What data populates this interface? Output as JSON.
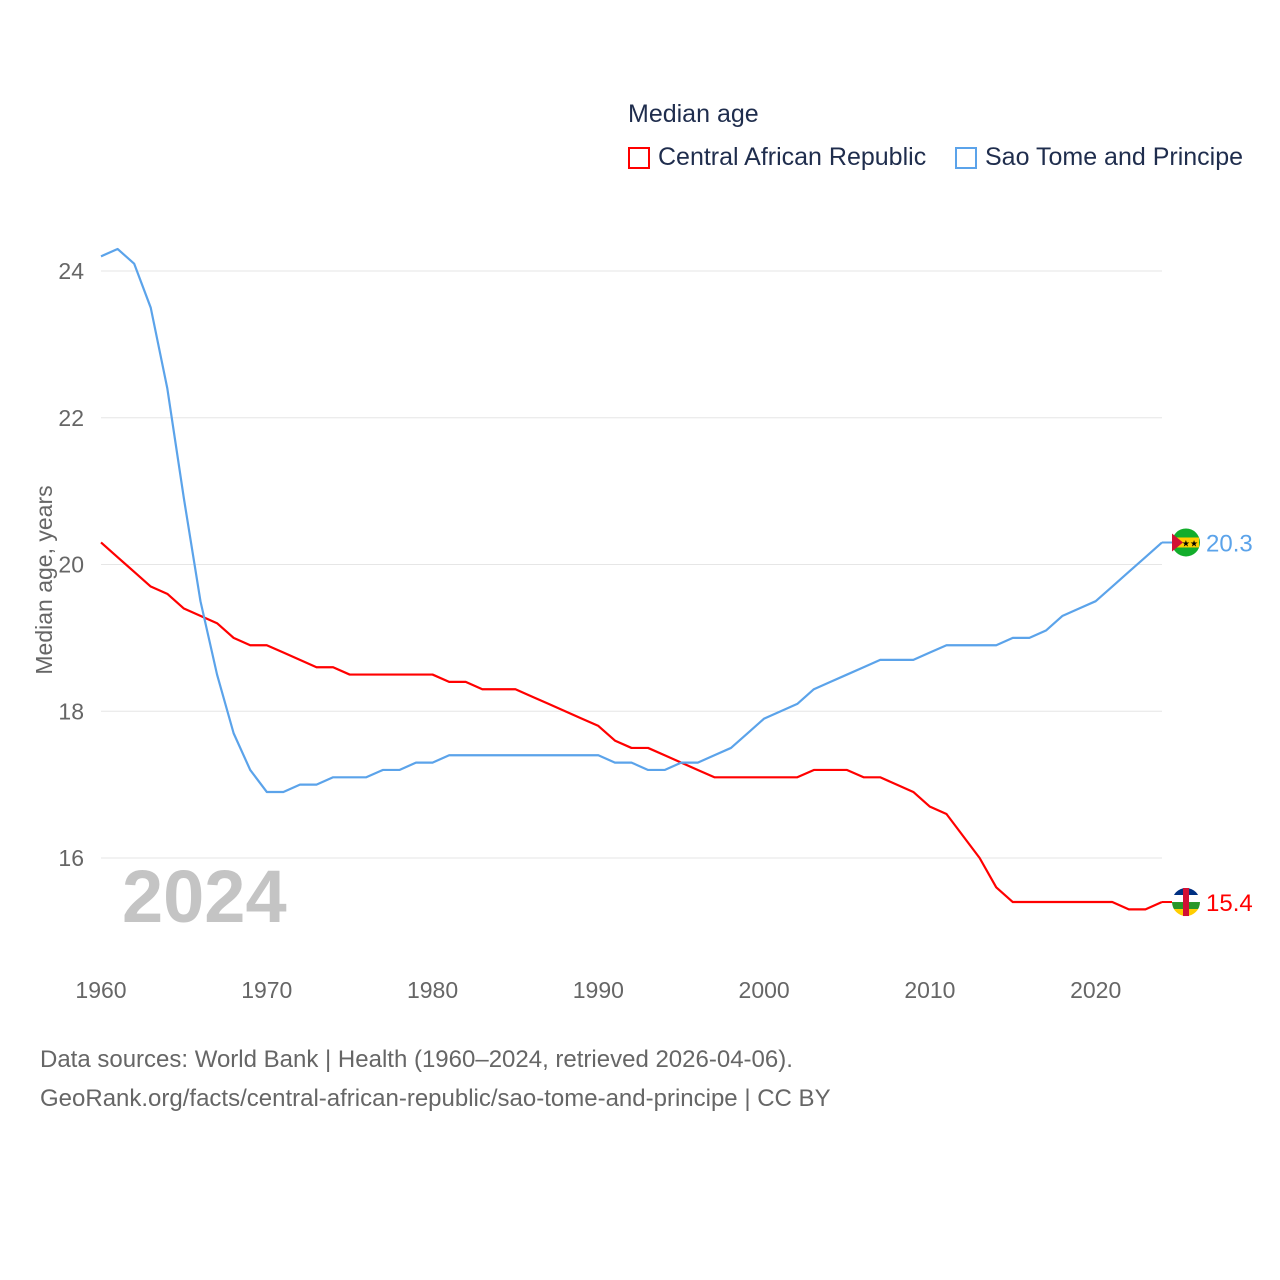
{
  "chart_data": {
    "type": "line",
    "title": "Median age",
    "xlabel": "",
    "ylabel": "Median age, years",
    "xlim": [
      1960,
      2024
    ],
    "ylim": [
      15,
      24.5
    ],
    "yticks": [
      16,
      18,
      20,
      22,
      24
    ],
    "xticks": [
      1960,
      1970,
      1980,
      1990,
      2000,
      2010,
      2020
    ],
    "grid": true,
    "legend_position": "top-right",
    "year_label": "2024",
    "x": [
      1960,
      1961,
      1962,
      1963,
      1964,
      1965,
      1966,
      1967,
      1968,
      1969,
      1970,
      1971,
      1972,
      1973,
      1974,
      1975,
      1976,
      1977,
      1978,
      1979,
      1980,
      1981,
      1982,
      1983,
      1984,
      1985,
      1986,
      1987,
      1988,
      1989,
      1990,
      1991,
      1992,
      1993,
      1994,
      1995,
      1996,
      1997,
      1998,
      1999,
      2000,
      2001,
      2002,
      2003,
      2004,
      2005,
      2006,
      2007,
      2008,
      2009,
      2010,
      2011,
      2012,
      2013,
      2014,
      2015,
      2016,
      2017,
      2018,
      2019,
      2020,
      2021,
      2022,
      2023,
      2024
    ],
    "series": [
      {
        "name": "Central African Republic",
        "color": "#ff0000",
        "end_label": "15.4",
        "values": [
          20.3,
          20.1,
          19.9,
          19.7,
          19.6,
          19.4,
          19.3,
          19.2,
          19.0,
          18.9,
          18.9,
          18.8,
          18.7,
          18.6,
          18.6,
          18.5,
          18.5,
          18.5,
          18.5,
          18.5,
          18.5,
          18.4,
          18.4,
          18.3,
          18.3,
          18.3,
          18.2,
          18.1,
          18.0,
          17.9,
          17.8,
          17.6,
          17.5,
          17.5,
          17.4,
          17.3,
          17.2,
          17.1,
          17.1,
          17.1,
          17.1,
          17.1,
          17.1,
          17.2,
          17.2,
          17.2,
          17.1,
          17.1,
          17.0,
          16.9,
          16.7,
          16.6,
          16.3,
          16.0,
          15.6,
          15.4,
          15.4,
          15.4,
          15.4,
          15.4,
          15.4,
          15.4,
          15.3,
          15.3,
          15.4
        ]
      },
      {
        "name": "Sao Tome and Principe",
        "color": "#5ba3ea",
        "end_label": "20.3",
        "values": [
          24.2,
          24.3,
          24.1,
          23.5,
          22.4,
          20.9,
          19.5,
          18.5,
          17.7,
          17.2,
          16.9,
          16.9,
          17.0,
          17.0,
          17.1,
          17.1,
          17.1,
          17.2,
          17.2,
          17.3,
          17.3,
          17.4,
          17.4,
          17.4,
          17.4,
          17.4,
          17.4,
          17.4,
          17.4,
          17.4,
          17.4,
          17.3,
          17.3,
          17.2,
          17.2,
          17.3,
          17.3,
          17.4,
          17.5,
          17.7,
          17.9,
          18.0,
          18.1,
          18.3,
          18.4,
          18.5,
          18.6,
          18.7,
          18.7,
          18.7,
          18.8,
          18.9,
          18.9,
          18.9,
          18.9,
          19.0,
          19.0,
          19.1,
          19.3,
          19.4,
          19.5,
          19.7,
          19.9,
          20.1,
          20.3
        ]
      }
    ]
  },
  "footer": {
    "line1": "Data sources: World Bank | Health (1960–2024, retrieved 2026-04-06).",
    "line2": "GeoRank.org/facts/central-african-republic/sao-tome-and-principe | CC BY"
  }
}
